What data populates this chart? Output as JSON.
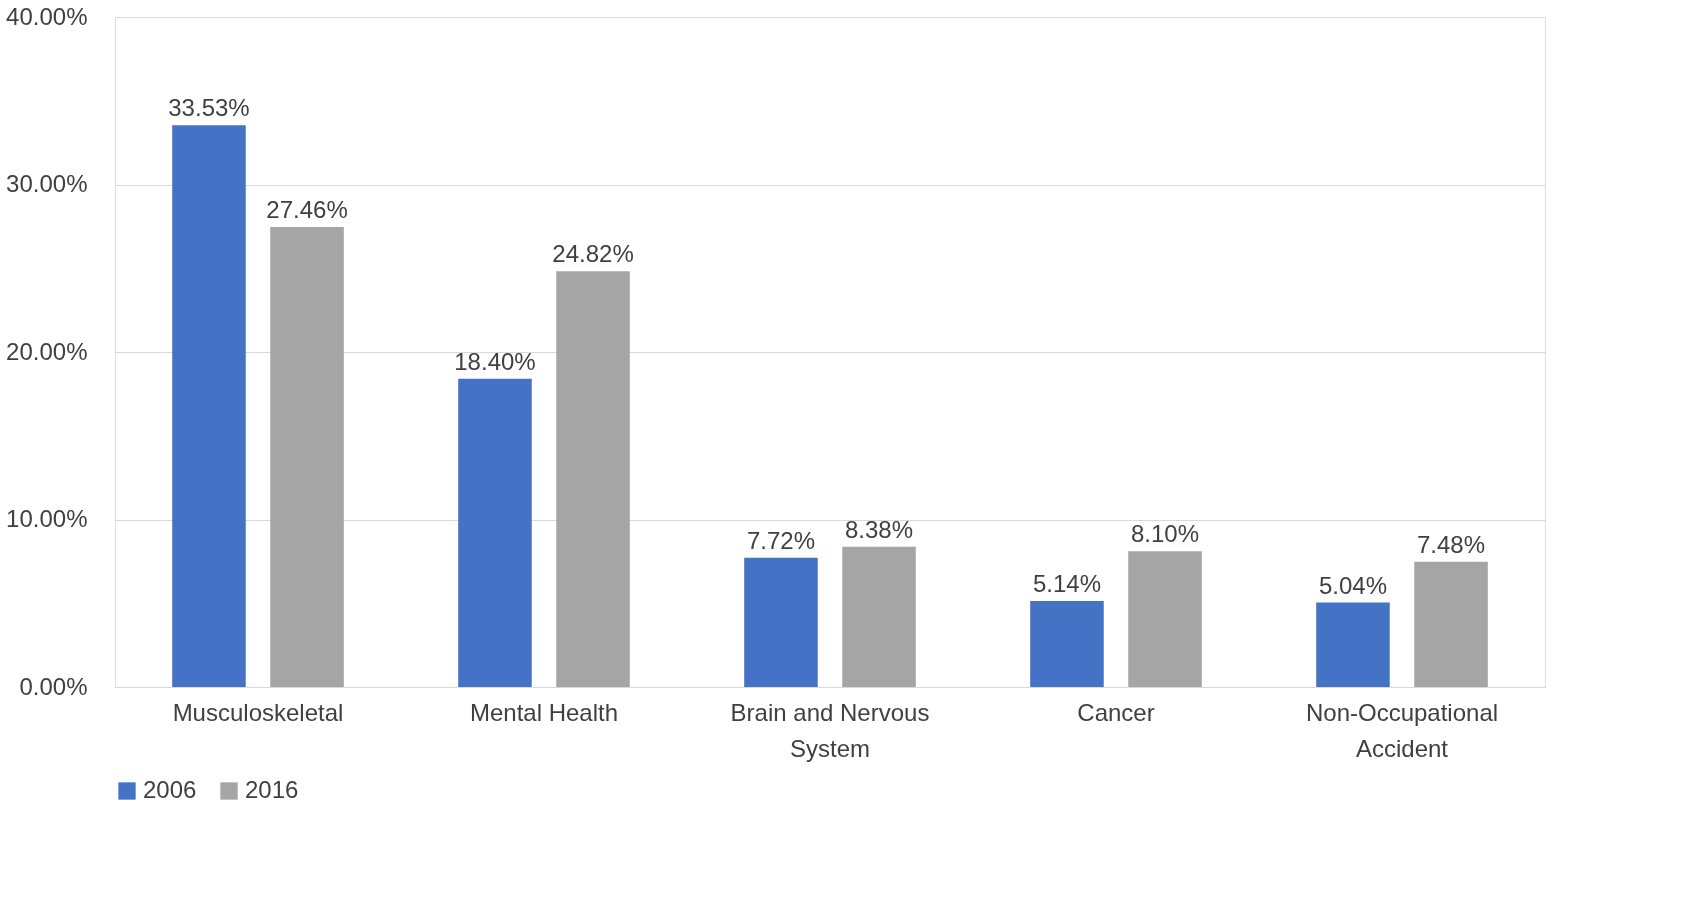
{
  "chart_data": {
    "type": "bar",
    "categories": [
      "Musculoskeletal",
      "Mental Health",
      "Brain and Nervous System",
      "Cancer",
      "Non-Occupational Accident"
    ],
    "series": [
      {
        "name": "2006",
        "color": "#4472c4",
        "values": [
          33.53,
          18.4,
          7.72,
          5.14,
          5.04
        ],
        "value_labels": [
          "33.53%",
          "18.40%",
          "7.72%",
          "5.14%",
          "5.04%"
        ]
      },
      {
        "name": "2016",
        "color": "#a5a5a5",
        "values": [
          27.46,
          24.82,
          8.38,
          8.1,
          7.48
        ],
        "value_labels": [
          "27.46%",
          "24.82%",
          "8.38%",
          "8.10%",
          "7.48%"
        ]
      }
    ],
    "ylim": [
      0,
      40
    ],
    "yticks": [
      {
        "value": 0,
        "label": "0.00%"
      },
      {
        "value": 10,
        "label": "10.00%"
      },
      {
        "value": 20,
        "label": "20.00%"
      },
      {
        "value": 30,
        "label": "30.00%"
      },
      {
        "value": 40,
        "label": "40.00%"
      }
    ],
    "grid": "y",
    "legend": "bottom"
  }
}
